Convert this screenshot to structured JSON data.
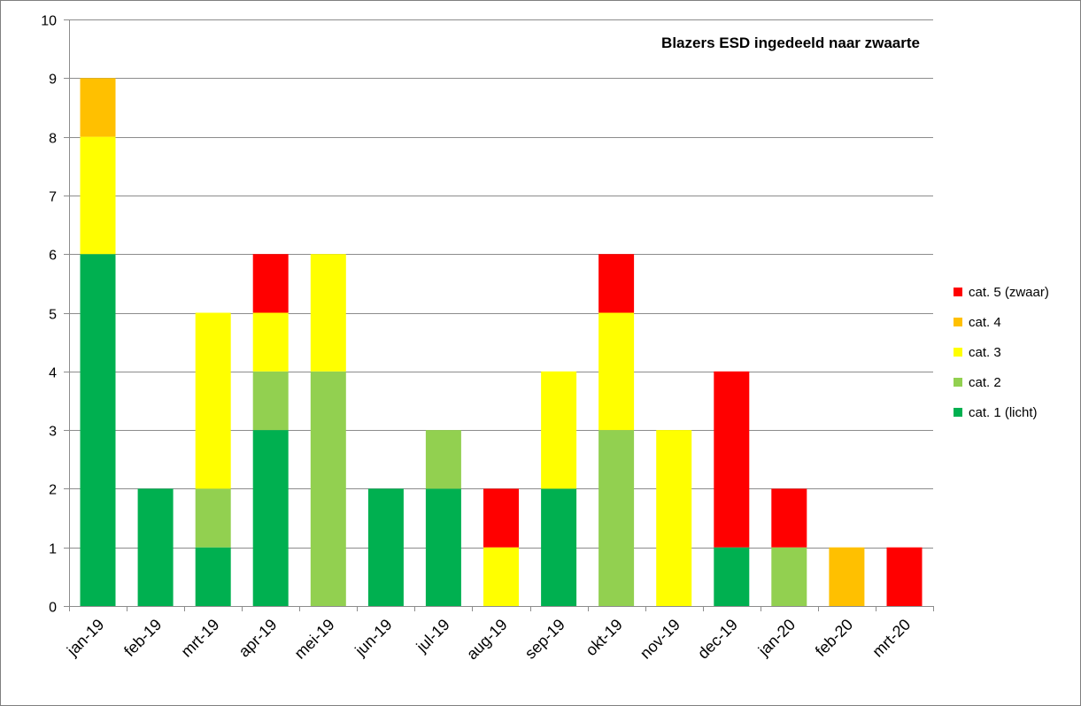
{
  "chart_data": {
    "type": "bar",
    "stacked": true,
    "title": "Blazers ESD ingedeeld naar zwaarte",
    "xlabel": "",
    "ylabel": "",
    "ylim": [
      0,
      10
    ],
    "yticks": [
      "0",
      "1",
      "2",
      "3",
      "4",
      "5",
      "6",
      "7",
      "8",
      "9",
      "10"
    ],
    "grid": true,
    "legend_position": "right",
    "categories": [
      "jan-19",
      "feb-19",
      "mrt-19",
      "apr-19",
      "mei-19",
      "jun-19",
      "jul-19",
      "aug-19",
      "sep-19",
      "okt-19",
      "nov-19",
      "dec-19",
      "jan-20",
      "feb-20",
      "mrt-20"
    ],
    "series": [
      {
        "name": "cat. 1 (licht)",
        "color": "#00b050",
        "values": [
          6,
          2,
          1,
          3,
          0,
          2,
          2,
          0,
          2,
          0,
          0,
          1,
          0,
          0,
          0
        ]
      },
      {
        "name": "cat. 2",
        "color": "#92d050",
        "values": [
          0,
          0,
          1,
          1,
          4,
          0,
          1,
          0,
          0,
          3,
          0,
          0,
          1,
          0,
          0
        ]
      },
      {
        "name": "cat. 3",
        "color": "#ffff00",
        "values": [
          2,
          0,
          3,
          1,
          2,
          0,
          0,
          1,
          2,
          2,
          3,
          0,
          0,
          0,
          0
        ]
      },
      {
        "name": "cat. 4",
        "color": "#ffc000",
        "values": [
          1,
          0,
          0,
          0,
          0,
          0,
          0,
          0,
          0,
          0,
          0,
          0,
          0,
          1,
          0
        ]
      },
      {
        "name": "cat. 5 (zwaar)",
        "color": "#ff0000",
        "values": [
          0,
          0,
          0,
          1,
          0,
          0,
          0,
          1,
          0,
          1,
          0,
          3,
          1,
          0,
          1
        ]
      }
    ]
  }
}
